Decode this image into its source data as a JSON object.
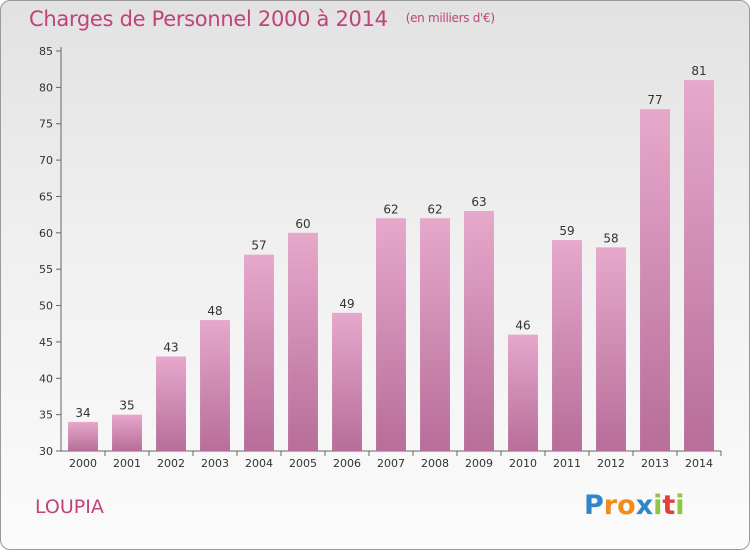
{
  "header": {
    "title": "Charges de Personnel 2000 à 2014",
    "subtitle": "(en milliers d'€)"
  },
  "location": "LOUPIA",
  "brand": {
    "letters": [
      "P",
      "r",
      "o",
      "x",
      "i",
      "t",
      "i"
    ],
    "colors": [
      "#2f86c8",
      "#f08c1c",
      "#f08c1c",
      "#2f86c8",
      "#8dc63f",
      "#e2403a",
      "#8dc63f"
    ]
  },
  "chart_data": {
    "type": "bar",
    "title": "Charges de Personnel 2000 à 2014",
    "subtitle": "(en milliers d'€)",
    "categories": [
      "2000",
      "2001",
      "2002",
      "2003",
      "2004",
      "2005",
      "2006",
      "2007",
      "2008",
      "2009",
      "2010",
      "2011",
      "2012",
      "2013",
      "2014"
    ],
    "values": [
      34,
      35,
      43,
      48,
      57,
      60,
      49,
      62,
      62,
      63,
      46,
      59,
      58,
      77,
      81
    ],
    "ylim": [
      30,
      85
    ],
    "yticks": [
      30,
      35,
      40,
      45,
      50,
      55,
      60,
      65,
      70,
      75,
      80,
      85
    ],
    "grid": false,
    "bar_color": "#d98fb7"
  }
}
